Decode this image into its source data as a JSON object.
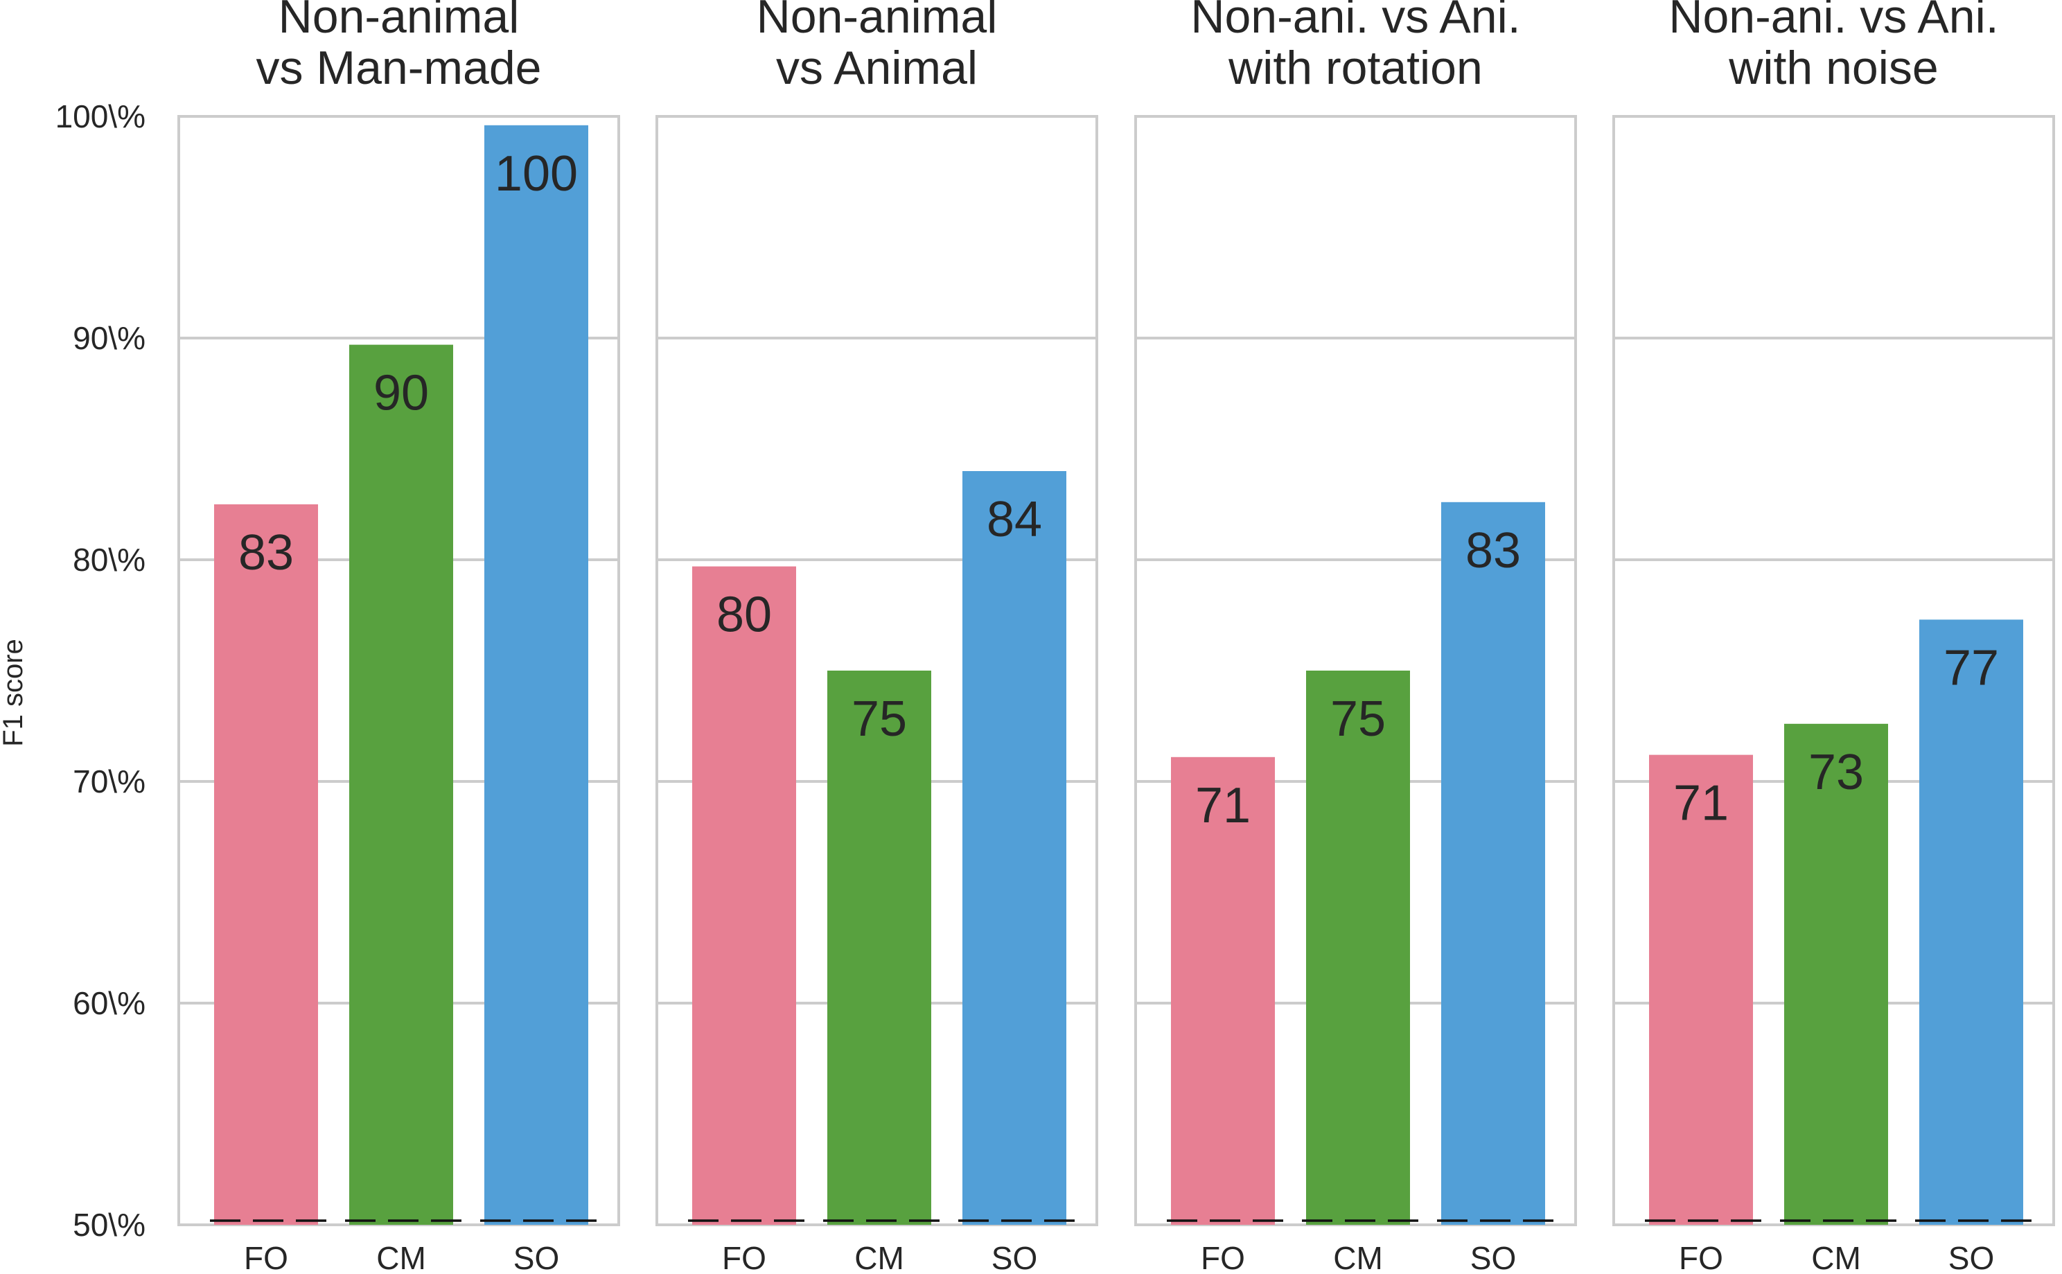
{
  "chart_data": {
    "type": "bar",
    "ylabel": "F1 score",
    "ylim": [
      50,
      100
    ],
    "yticks": [
      50,
      60,
      70,
      80,
      90,
      100
    ],
    "ytick_labels": [
      "50\\%",
      "60\\%",
      "70\\%",
      "80\\%",
      "90\\%",
      "100\\%"
    ],
    "categories": [
      "FO",
      "CM",
      "SO"
    ],
    "colors": [
      "#e77f93",
      "#58a13f",
      "#529fd7"
    ],
    "grid": true,
    "panels": [
      {
        "title": [
          "Non-animal",
          "vs Man-made"
        ],
        "values": [
          82.5,
          89.7,
          99.6
        ],
        "labels": [
          "83",
          "90",
          "100"
        ]
      },
      {
        "title": [
          "Non-animal",
          "vs Animal"
        ],
        "values": [
          79.7,
          75.0,
          84.0
        ],
        "labels": [
          "80",
          "75",
          "84"
        ]
      },
      {
        "title": [
          "Non-ani. vs Ani.",
          "with rotation"
        ],
        "values": [
          71.1,
          75.0,
          82.6
        ],
        "labels": [
          "71",
          "75",
          "83"
        ]
      },
      {
        "title": [
          "Non-ani. vs Ani.",
          "with noise"
        ],
        "values": [
          71.2,
          72.6,
          77.3
        ],
        "labels": [
          "71",
          "73",
          "77"
        ]
      }
    ]
  }
}
